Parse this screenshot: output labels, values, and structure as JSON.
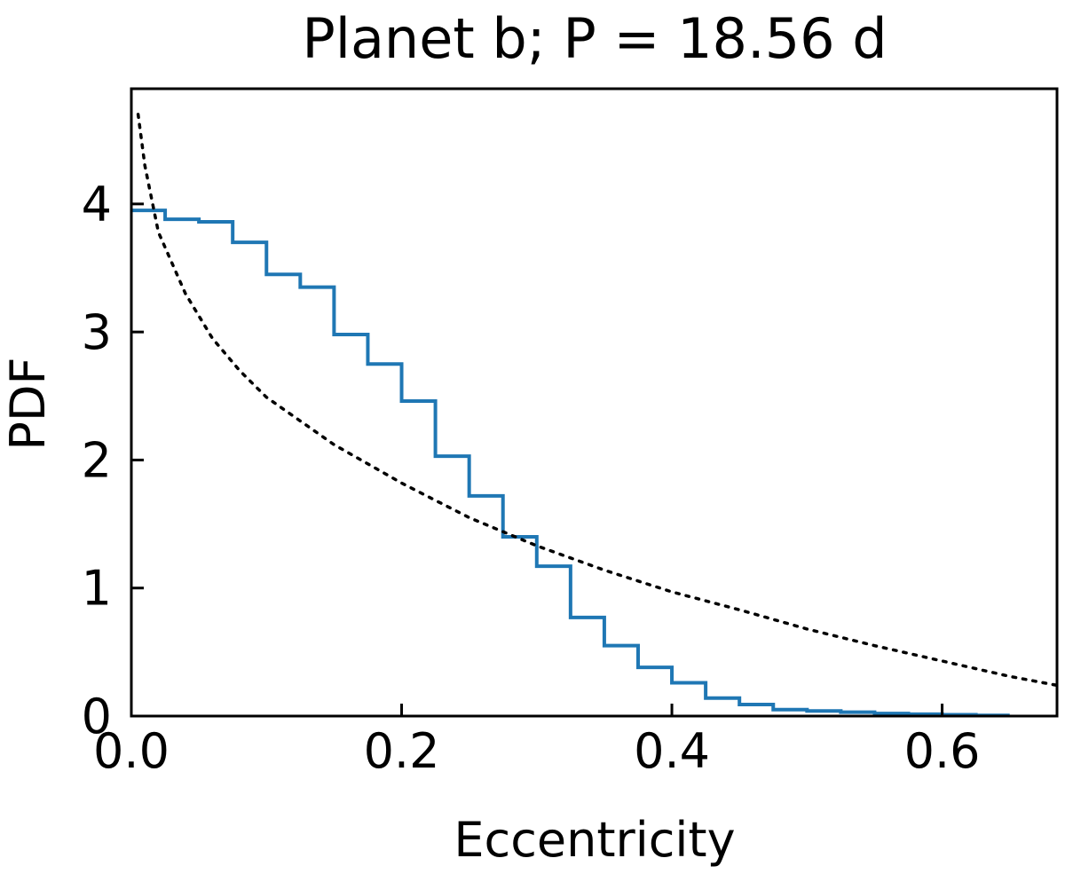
{
  "chart_data": {
    "type": "line",
    "title": "Planet b; P = 18.56 d",
    "xlabel": "Eccentricity",
    "ylabel": "PDF",
    "xlim": [
      0.0,
      0.685
    ],
    "ylim": [
      0.0,
      4.9
    ],
    "xticks": [
      0.0,
      0.2,
      0.4,
      0.6
    ],
    "xtick_labels": [
      "0.0",
      "0.2",
      "0.4",
      "0.6"
    ],
    "yticks": [
      0,
      1,
      2,
      3,
      4
    ],
    "ytick_labels": [
      "0",
      "1",
      "2",
      "3",
      "4"
    ],
    "grid": false,
    "tick_direction": "in",
    "series": [
      {
        "style": "step histogram",
        "color": "#1f77b4",
        "bin_edges": [
          0.0,
          0.025,
          0.05,
          0.075,
          0.1,
          0.125,
          0.15,
          0.175,
          0.2,
          0.225,
          0.25,
          0.275,
          0.3,
          0.325,
          0.35,
          0.375,
          0.4,
          0.425,
          0.45,
          0.475,
          0.5,
          0.525,
          0.55,
          0.575,
          0.6,
          0.625,
          0.65
        ],
        "values": [
          3.95,
          3.88,
          3.86,
          3.7,
          3.45,
          3.35,
          2.98,
          2.75,
          2.46,
          2.03,
          1.72,
          1.4,
          1.17,
          0.77,
          0.55,
          0.38,
          0.26,
          0.14,
          0.09,
          0.05,
          0.04,
          0.03,
          0.02,
          0.015,
          0.01,
          0.005
        ]
      },
      {
        "style": "dotted",
        "color": "#000000",
        "x": [
          0.005,
          0.01,
          0.02,
          0.04,
          0.06,
          0.08,
          0.1,
          0.15,
          0.2,
          0.25,
          0.3,
          0.35,
          0.4,
          0.45,
          0.5,
          0.55,
          0.6,
          0.65,
          0.685
        ],
        "y": [
          4.7,
          4.3,
          3.78,
          3.3,
          2.95,
          2.7,
          2.49,
          2.12,
          1.82,
          1.55,
          1.33,
          1.14,
          0.97,
          0.83,
          0.68,
          0.55,
          0.43,
          0.31,
          0.24
        ]
      }
    ]
  }
}
